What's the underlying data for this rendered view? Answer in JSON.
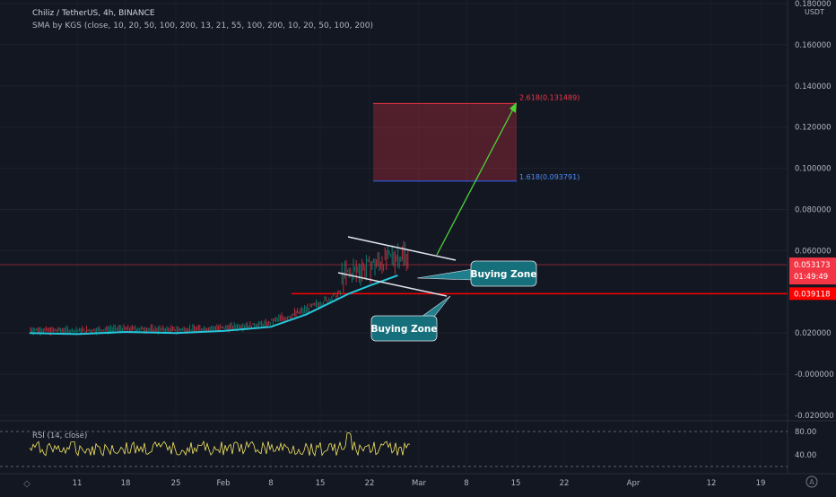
{
  "header": {
    "title": "Chiliz / TetherUS, 4h, BINANCE",
    "indicator": "SMA by KGS (close, 10, 20, 50, 100, 200, 13, 21, 55, 100, 200, 10, 20, 50, 100, 200)"
  },
  "chart_data": {
    "type": "line",
    "currency_label": "USDT",
    "y_ticks": [
      "0.180000",
      "0.160000",
      "0.140000",
      "0.120000",
      "0.100000",
      "0.080000",
      "0.060000",
      "0.020000",
      "-0.000000",
      "-0.020000"
    ],
    "ylim": [
      -0.02,
      0.18
    ],
    "x_ticks": [
      "11",
      "18",
      "25",
      "Feb",
      "8",
      "15",
      "22",
      "Mar",
      "8",
      "15",
      "22",
      "Apr",
      "12",
      "19"
    ],
    "price_badge": {
      "value": "0.053173",
      "countdown": "01:49:49",
      "color": "#f23645"
    },
    "support_badge": {
      "value": "0.039118",
      "color": "#ff0000"
    },
    "fib_levels": [
      {
        "label": "2.618(0.131489)",
        "value": 0.131489,
        "color": "#f23645"
      },
      {
        "label": "1.618(0.093791)",
        "value": 0.093791,
        "color": "#2962ff"
      }
    ],
    "annotations": [
      "Buying Zone",
      "Buying Zone"
    ],
    "series": [
      {
        "x": [
          "Jan 5",
          "Jan 11",
          "Jan 18",
          "Jan 25",
          "Feb 1",
          "Feb 8",
          "Feb 13",
          "Feb 16",
          "Feb 19",
          "Feb 22",
          "Feb 26"
        ],
        "values": [
          0.02,
          0.0195,
          0.0205,
          0.02,
          0.021,
          0.023,
          0.029,
          0.034,
          0.039,
          0.043,
          0.048
        ]
      }
    ],
    "rsi": {
      "label": "RSI (14, close)",
      "levels": [
        "80.00",
        "40.00"
      ]
    }
  }
}
